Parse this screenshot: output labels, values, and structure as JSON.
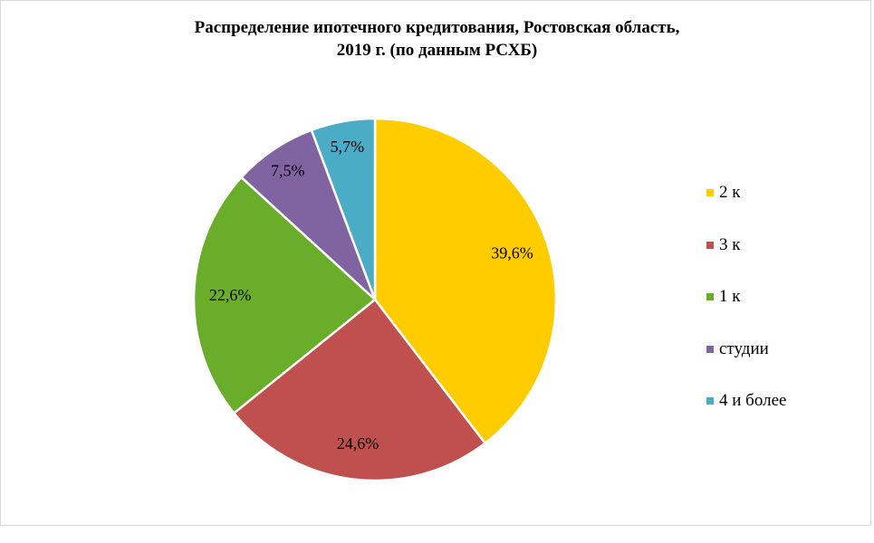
{
  "chart_data": {
    "type": "pie",
    "title_lines": [
      "Распределение ипотечного кредитования, Ростовская область,",
      "2019 г. (по данным РСХБ)"
    ],
    "categories": [
      "2 к",
      "3 к",
      "1 к",
      "студии",
      "4 и более"
    ],
    "values": [
      39.6,
      24.6,
      22.6,
      7.5,
      5.7
    ],
    "data_labels": [
      "39,6%",
      "24,6%",
      "22,6%",
      "7,5%",
      "5,7%"
    ],
    "colors": [
      "#FFCC00",
      "#C0504D",
      "#6AAD2B",
      "#8064A2",
      "#4BACC6"
    ],
    "legend_position": "right",
    "start_angle": "top, clockwise"
  }
}
